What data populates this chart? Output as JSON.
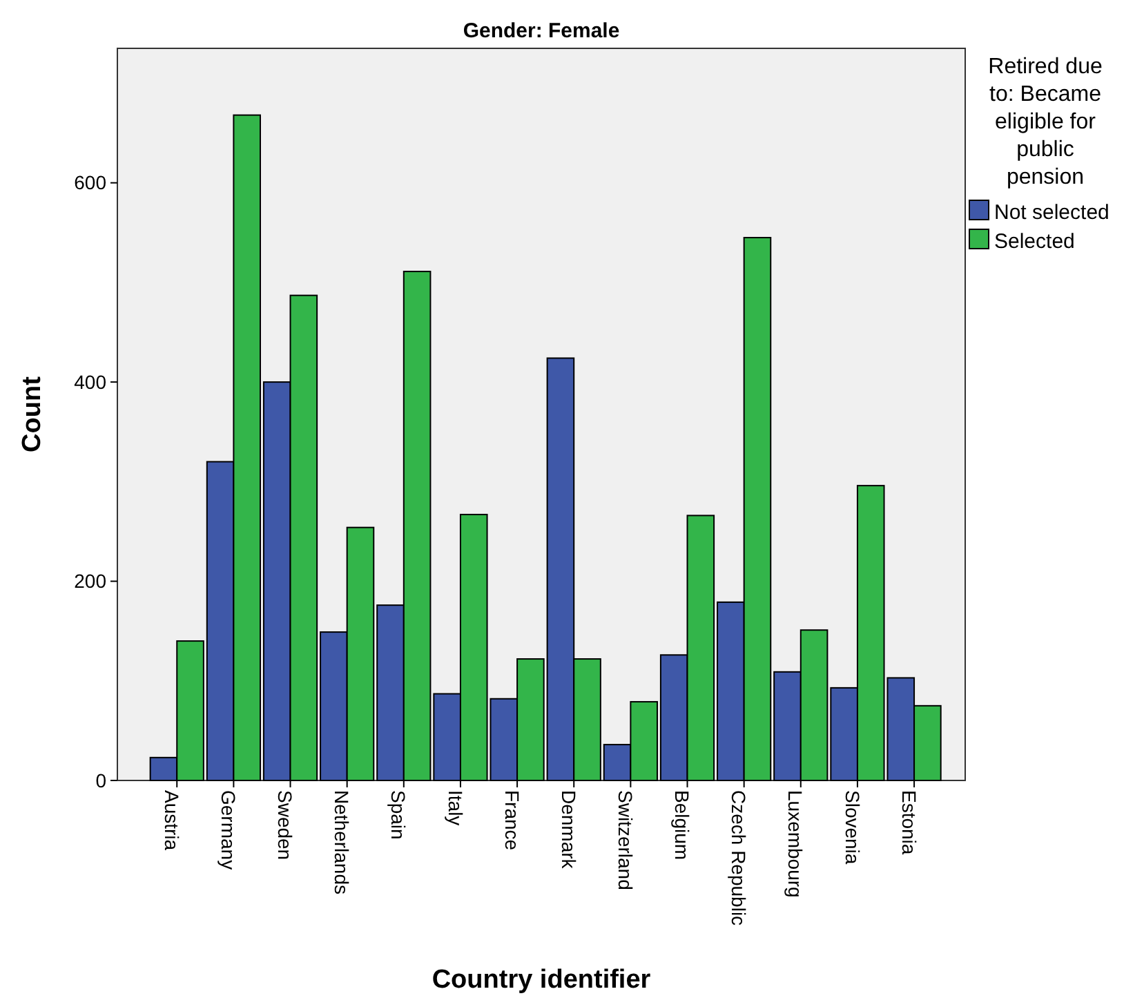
{
  "chart_data": {
    "type": "bar",
    "title": "Gender: Female",
    "xlabel": "Country identifier",
    "ylabel": "Count",
    "legend_title": "Retired due to: Became eligible for public pension",
    "categories": [
      "Austria",
      "Germany",
      "Sweden",
      "Netherlands",
      "Spain",
      "Italy",
      "France",
      "Denmark",
      "Switzerland",
      "Belgium",
      "Czech Republic",
      "Luxembourg",
      "Slovenia",
      "Estonia"
    ],
    "series": [
      {
        "name": "Not selected",
        "color": "#3f58a8",
        "values": [
          23,
          320,
          400,
          149,
          176,
          87,
          82,
          424,
          36,
          126,
          179,
          109,
          93,
          103
        ]
      },
      {
        "name": "Selected",
        "color": "#33b54a",
        "values": [
          140,
          668,
          487,
          254,
          511,
          267,
          122,
          122,
          79,
          266,
          545,
          151,
          296,
          75
        ]
      }
    ],
    "ylim": [
      0,
      735
    ],
    "yticks": [
      0,
      200,
      400,
      600
    ],
    "grid": false,
    "legend": "right"
  }
}
